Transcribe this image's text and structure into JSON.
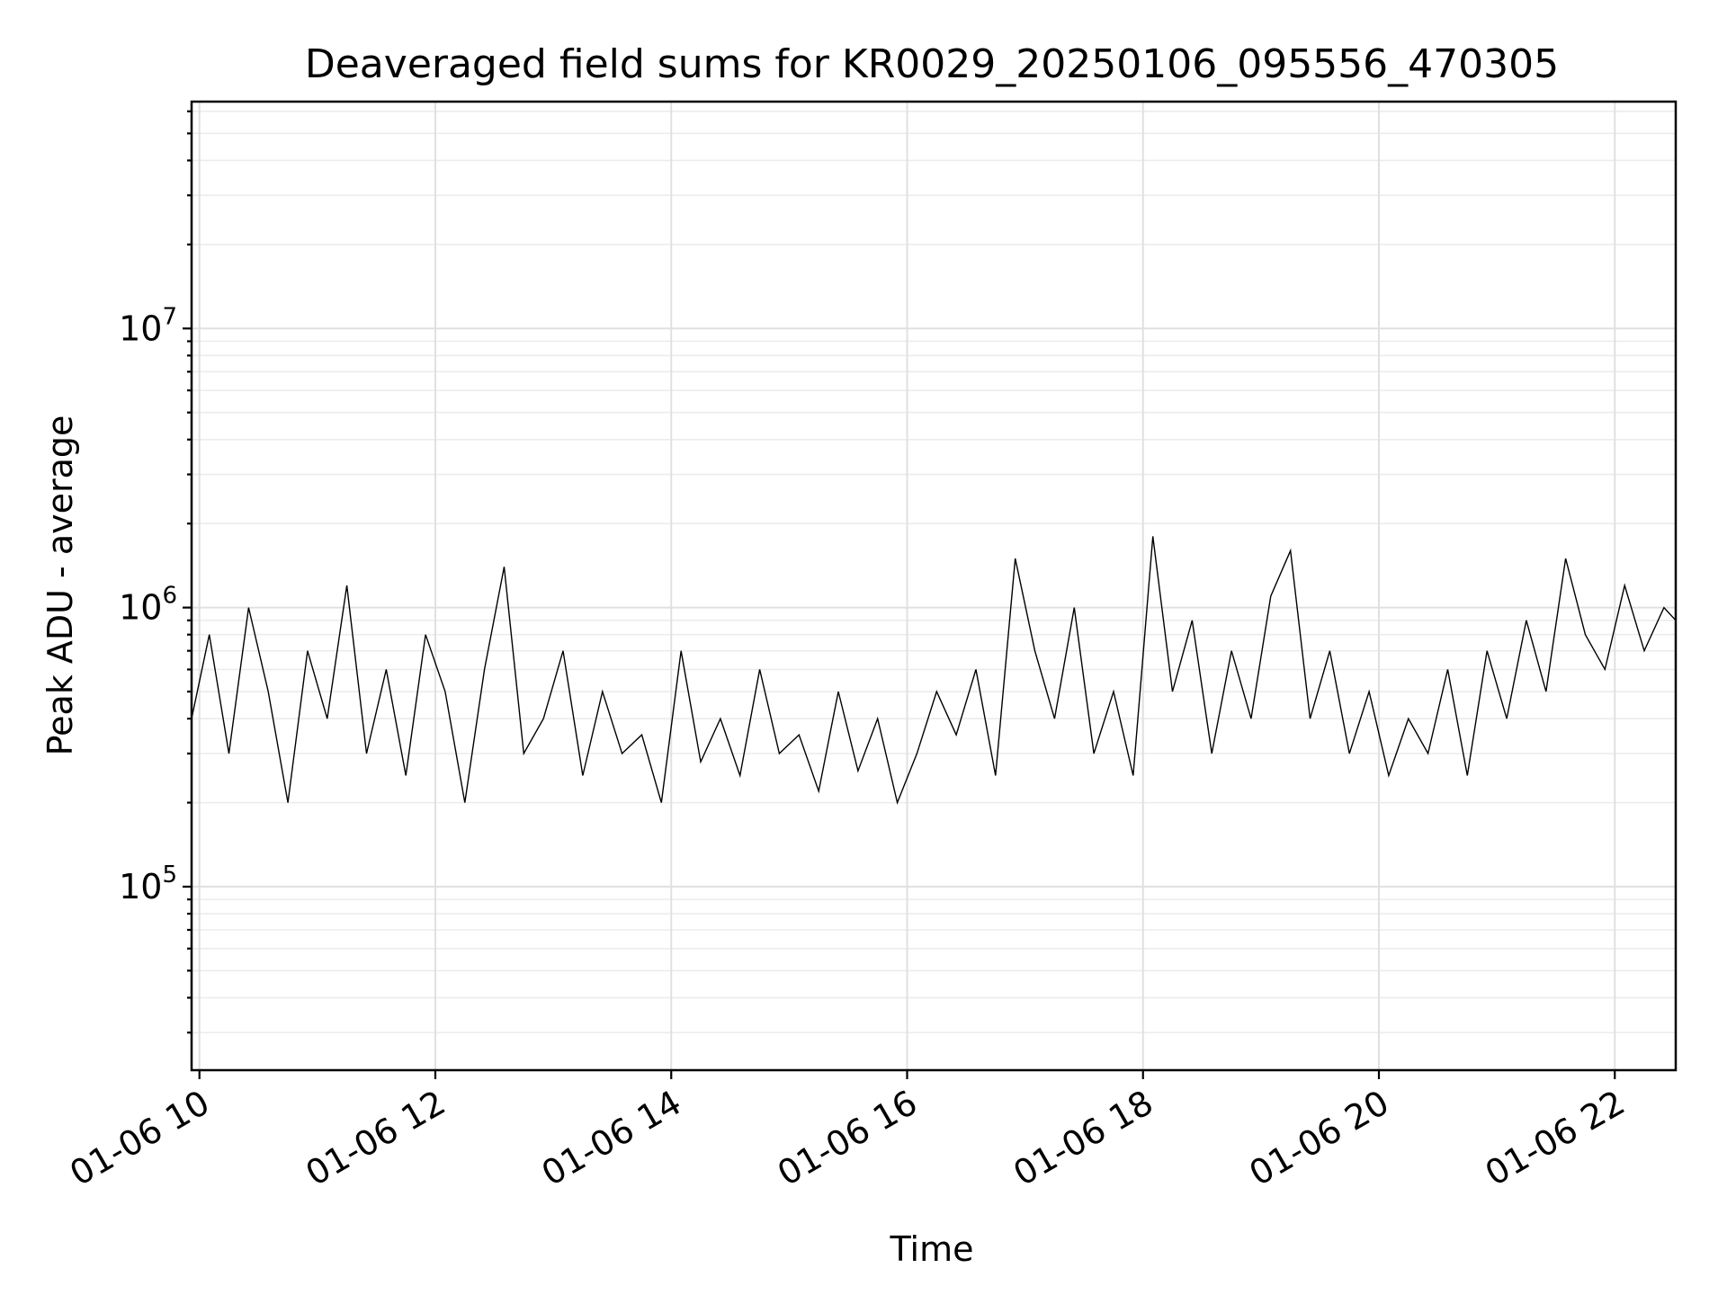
{
  "chart_data": {
    "type": "line",
    "title": "Deaveraged field sums for KR0029_20250106_095556_470305",
    "xlabel": "Time",
    "ylabel": "Peak ADU - average",
    "xlim": [
      "2025-01-06 09:56",
      "2025-01-06 22:31"
    ],
    "ylim": [
      22000,
      65000000
    ],
    "yscale": "log",
    "grid": true,
    "x_ticks": [
      {
        "value": "2025-01-06 10:00",
        "label": "01-06 10"
      },
      {
        "value": "2025-01-06 12:00",
        "label": "01-06 12"
      },
      {
        "value": "2025-01-06 14:00",
        "label": "01-06 14"
      },
      {
        "value": "2025-01-06 16:00",
        "label": "01-06 16"
      },
      {
        "value": "2025-01-06 18:00",
        "label": "01-06 18"
      },
      {
        "value": "2025-01-06 20:00",
        "label": "01-06 20"
      },
      {
        "value": "2025-01-06 22:00",
        "label": "01-06 22"
      }
    ],
    "y_ticks": [
      {
        "value": 100000,
        "base": "10",
        "exp": "5"
      },
      {
        "value": 1000000,
        "base": "10",
        "exp": "6"
      },
      {
        "value": 10000000,
        "base": "10",
        "exp": "7"
      }
    ],
    "series": [
      {
        "color": "#000000",
        "x": [
          "2025-01-06 09:56",
          "2025-01-06 10:05",
          "2025-01-06 10:15",
          "2025-01-06 10:25",
          "2025-01-06 10:35",
          "2025-01-06 10:45",
          "2025-01-06 10:55",
          "2025-01-06 11:05",
          "2025-01-06 11:15",
          "2025-01-06 11:25",
          "2025-01-06 11:35",
          "2025-01-06 11:45",
          "2025-01-06 11:55",
          "2025-01-06 12:05",
          "2025-01-06 12:15",
          "2025-01-06 12:25",
          "2025-01-06 12:35",
          "2025-01-06 12:45",
          "2025-01-06 12:55",
          "2025-01-06 13:05",
          "2025-01-06 13:15",
          "2025-01-06 13:25",
          "2025-01-06 13:35",
          "2025-01-06 13:45",
          "2025-01-06 13:55",
          "2025-01-06 14:05",
          "2025-01-06 14:15",
          "2025-01-06 14:25",
          "2025-01-06 14:35",
          "2025-01-06 14:45",
          "2025-01-06 14:55",
          "2025-01-06 15:05",
          "2025-01-06 15:15",
          "2025-01-06 15:25",
          "2025-01-06 15:35",
          "2025-01-06 15:45",
          "2025-01-06 15:55",
          "2025-01-06 16:05",
          "2025-01-06 16:15",
          "2025-01-06 16:25",
          "2025-01-06 16:35",
          "2025-01-06 16:45",
          "2025-01-06 16:55",
          "2025-01-06 17:05",
          "2025-01-06 17:15",
          "2025-01-06 17:25",
          "2025-01-06 17:35",
          "2025-01-06 17:45",
          "2025-01-06 17:55",
          "2025-01-06 18:05",
          "2025-01-06 18:15",
          "2025-01-06 18:25",
          "2025-01-06 18:35",
          "2025-01-06 18:45",
          "2025-01-06 18:55",
          "2025-01-06 19:05",
          "2025-01-06 19:15",
          "2025-01-06 19:25",
          "2025-01-06 19:35",
          "2025-01-06 19:45",
          "2025-01-06 19:55",
          "2025-01-06 20:05",
          "2025-01-06 20:15",
          "2025-01-06 20:25",
          "2025-01-06 20:35",
          "2025-01-06 20:45",
          "2025-01-06 20:55",
          "2025-01-06 21:05",
          "2025-01-06 21:15",
          "2025-01-06 21:25",
          "2025-01-06 21:35",
          "2025-01-06 21:45",
          "2025-01-06 21:55",
          "2025-01-06 22:05",
          "2025-01-06 22:15",
          "2025-01-06 22:25",
          "2025-01-06 22:31"
        ],
        "y": [
          400000,
          800000,
          300000,
          1000000,
          500000,
          200000,
          700000,
          400000,
          1200000,
          300000,
          600000,
          250000,
          800000,
          500000,
          200000,
          600000,
          1400000,
          300000,
          400000,
          700000,
          250000,
          500000,
          300000,
          350000,
          200000,
          700000,
          280000,
          400000,
          250000,
          600000,
          300000,
          350000,
          220000,
          500000,
          260000,
          400000,
          200000,
          300000,
          500000,
          350000,
          600000,
          250000,
          1500000,
          700000,
          400000,
          1000000,
          300000,
          500000,
          250000,
          1800000,
          500000,
          900000,
          300000,
          700000,
          400000,
          1100000,
          1600000,
          400000,
          700000,
          300000,
          500000,
          250000,
          400000,
          300000,
          600000,
          250000,
          700000,
          400000,
          900000,
          500000,
          1500000,
          800000,
          600000,
          1200000,
          700000,
          1000000,
          900000
        ]
      }
    ]
  }
}
